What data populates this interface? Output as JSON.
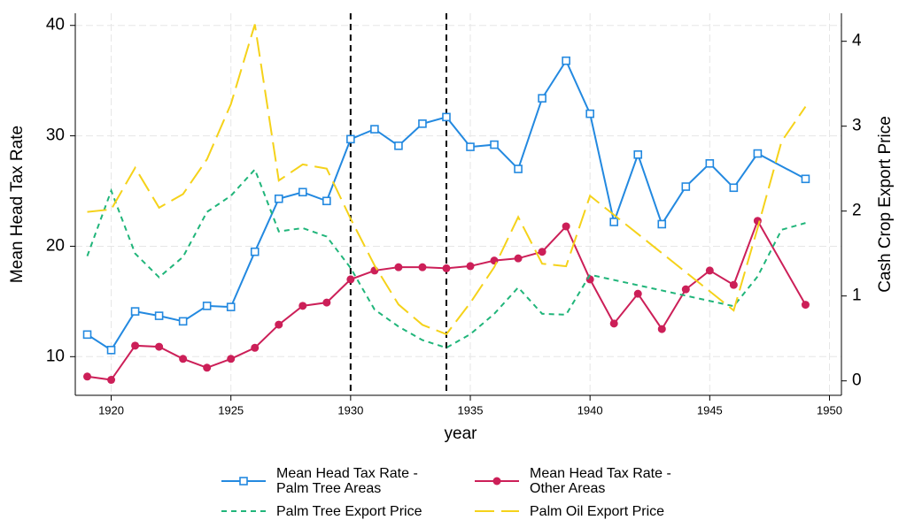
{
  "chart_data": {
    "type": "line",
    "xlabel": "year",
    "ylabel": "Mean Head Tax Rate",
    "y2label": "Cash Crop Export Price",
    "xlim": [
      1918.5,
      1950.5
    ],
    "xticks": [
      1920,
      1925,
      1930,
      1935,
      1940,
      1945,
      1950
    ],
    "ylim": [
      6.5,
      41.1
    ],
    "yticks": [
      10,
      20,
      30,
      40
    ],
    "y2lim": [
      -0.17,
      4.33
    ],
    "y2ticks": [
      0,
      1,
      2,
      3,
      4
    ],
    "grid": true,
    "vlines": [
      1930,
      1934
    ],
    "series": [
      {
        "name": "Mean Head Tax Rate - Palm Tree Areas",
        "color": "#2389e0",
        "marker": "square",
        "dash": "solid",
        "x": [
          1919,
          1920,
          1921,
          1922,
          1923,
          1924,
          1925,
          1926,
          1927,
          1928,
          1929,
          1930,
          1931,
          1932,
          1933,
          1934,
          1935,
          1936,
          1937,
          1938,
          1939,
          1940,
          1941,
          1942,
          1943,
          1944,
          1945,
          1946,
          1947,
          1949
        ],
        "values": [
          12.0,
          10.6,
          14.1,
          13.7,
          13.2,
          14.6,
          14.5,
          19.5,
          24.3,
          24.9,
          24.1,
          29.7,
          30.6,
          29.1,
          31.1,
          31.7,
          29.0,
          29.2,
          27.0,
          33.4,
          36.8,
          32.0,
          22.2,
          28.3,
          22.0,
          25.4,
          27.5,
          25.3,
          28.4,
          26.1
        ]
      },
      {
        "name": "Mean Head Tax Rate - Other Areas",
        "color": "#cc1f58",
        "marker": "circle",
        "dash": "solid",
        "x": [
          1919,
          1920,
          1921,
          1922,
          1923,
          1924,
          1925,
          1926,
          1927,
          1928,
          1929,
          1930,
          1931,
          1932,
          1933,
          1934,
          1935,
          1936,
          1937,
          1938,
          1939,
          1940,
          1941,
          1942,
          1943,
          1944,
          1945,
          1946,
          1947,
          1949
        ],
        "values": [
          8.2,
          7.9,
          11.0,
          10.9,
          9.8,
          9.0,
          9.8,
          10.8,
          12.9,
          14.6,
          14.9,
          17.0,
          17.8,
          18.1,
          18.1,
          18.0,
          18.2,
          18.7,
          18.9,
          19.5,
          21.8,
          17.0,
          13.0,
          15.7,
          12.5,
          16.1,
          17.8,
          16.5,
          22.3,
          14.7
        ]
      },
      {
        "name": "Palm Tree Export Price",
        "color": "#20b57a",
        "marker": "none",
        "dash": "short",
        "axis": "y2",
        "x": [
          1919,
          1920,
          1921,
          1922,
          1923,
          1924,
          1925,
          1926,
          1927,
          1928,
          1929,
          1930,
          1931,
          1932,
          1933,
          1934,
          1935,
          1936,
          1937,
          1938,
          1939,
          1940,
          1946,
          1947,
          1948,
          1949
        ],
        "values": [
          1.47,
          2.24,
          1.5,
          1.22,
          1.46,
          1.99,
          2.18,
          2.49,
          1.76,
          1.8,
          1.7,
          1.33,
          0.84,
          0.64,
          0.48,
          0.39,
          0.55,
          0.79,
          1.1,
          0.79,
          0.78,
          1.25,
          0.88,
          1.23,
          1.78,
          1.86
        ]
      },
      {
        "name": "Palm Oil Export Price",
        "color": "#f5d21a",
        "marker": "none",
        "dash": "long",
        "axis": "y2",
        "x": [
          1919,
          1920,
          1921,
          1922,
          1923,
          1924,
          1925,
          1926,
          1927,
          1928,
          1929,
          1930,
          1931,
          1932,
          1933,
          1934,
          1935,
          1936,
          1937,
          1938,
          1939,
          1940,
          1946,
          1947,
          1948,
          1949
        ],
        "values": [
          1.99,
          2.02,
          2.51,
          2.04,
          2.2,
          2.61,
          3.26,
          4.2,
          2.36,
          2.55,
          2.5,
          1.91,
          1.36,
          0.9,
          0.66,
          0.55,
          0.92,
          1.34,
          1.93,
          1.38,
          1.35,
          2.18,
          0.83,
          1.8,
          2.82,
          3.23
        ]
      }
    ]
  }
}
